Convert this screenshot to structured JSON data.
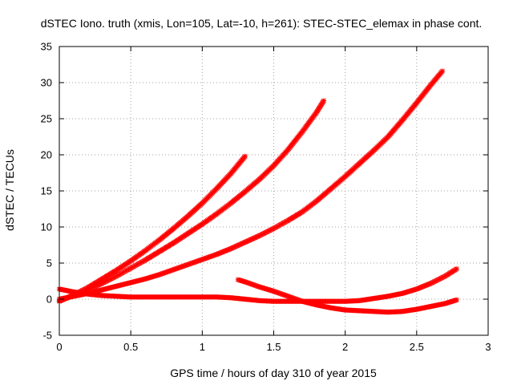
{
  "chart_data": {
    "type": "scatter",
    "title": "dSTEC Iono. truth (xmis, Lon=105, Lat=-10, h=261): STEC-STEC_elemax in phase cont.",
    "xlabel": "GPS time / hours of day 310 of year 2015",
    "ylabel": "dSTEC  / TECUs",
    "xlim": [
      0,
      3
    ],
    "ylim": [
      -5,
      35
    ],
    "xticks": [
      0,
      0.5,
      1,
      1.5,
      2,
      2.5,
      3
    ],
    "yticks": [
      -5,
      0,
      5,
      10,
      15,
      20,
      25,
      30,
      35
    ],
    "xtick_labels": [
      "0",
      "0.5",
      "1",
      "1.5",
      "2",
      "2.5",
      "3"
    ],
    "ytick_labels": [
      "-5",
      "0",
      "5",
      "10",
      "15",
      "20",
      "25",
      "30",
      "35"
    ],
    "grid": true,
    "marker": "plus-cross",
    "color": "#ff0000",
    "series": [
      {
        "x": [
          0.0,
          0.1,
          0.2,
          0.3,
          0.4,
          0.5,
          0.6,
          0.7,
          0.8,
          0.9,
          1.0,
          1.1,
          1.2,
          1.3
        ],
        "y": [
          -0.3,
          0.6,
          1.6,
          2.8,
          4.0,
          5.3,
          6.7,
          8.2,
          9.8,
          11.5,
          13.3,
          15.3,
          17.4,
          19.8
        ]
      },
      {
        "x": [
          0.0,
          0.1,
          0.2,
          0.3,
          0.4,
          0.5,
          0.6,
          0.7,
          0.8,
          0.9,
          1.0,
          1.1,
          1.2,
          1.3,
          1.4,
          1.5,
          1.6,
          1.7,
          1.8,
          1.85
        ],
        "y": [
          -0.2,
          0.5,
          1.3,
          2.2,
          3.2,
          4.3,
          5.4,
          6.6,
          7.8,
          9.1,
          10.4,
          11.8,
          13.3,
          14.9,
          16.6,
          18.5,
          20.7,
          23.2,
          25.9,
          27.5
        ]
      },
      {
        "x": [
          0.0,
          0.1,
          0.2,
          0.3,
          0.4,
          0.5,
          0.6,
          0.7,
          0.8,
          0.9,
          1.0,
          1.1,
          1.2,
          1.3,
          1.4,
          1.5,
          1.6,
          1.7,
          1.8,
          1.9,
          2.0,
          2.1,
          2.2,
          2.3,
          2.4,
          2.5,
          2.6,
          2.68
        ],
        "y": [
          0.0,
          0.4,
          0.8,
          1.3,
          1.8,
          2.3,
          2.8,
          3.4,
          4.1,
          4.8,
          5.5,
          6.2,
          7.0,
          7.9,
          8.8,
          9.8,
          10.9,
          12.1,
          13.6,
          15.3,
          17.0,
          18.8,
          20.6,
          22.5,
          24.8,
          27.2,
          29.7,
          31.6
        ]
      },
      {
        "x": [
          0.0,
          0.1,
          0.2,
          0.3,
          0.4,
          0.5,
          0.6,
          0.7,
          0.8,
          0.9,
          1.0,
          1.1,
          1.2,
          1.3,
          1.4,
          1.5,
          1.6,
          1.7,
          1.8,
          1.9,
          2.0,
          2.1,
          2.2,
          2.3,
          2.4,
          2.5,
          2.6,
          2.7,
          2.78
        ],
        "y": [
          1.4,
          1.0,
          0.7,
          0.5,
          0.4,
          0.3,
          0.3,
          0.3,
          0.3,
          0.3,
          0.3,
          0.3,
          0.2,
          0.0,
          -0.2,
          -0.3,
          -0.3,
          -0.3,
          -0.3,
          -0.3,
          -0.3,
          -0.2,
          0.1,
          0.4,
          0.8,
          1.4,
          2.2,
          3.2,
          4.2
        ]
      },
      {
        "x": [
          1.25,
          1.3,
          1.4,
          1.5,
          1.6,
          1.7,
          1.8,
          1.9,
          2.0,
          2.1,
          2.2,
          2.3,
          2.4,
          2.5,
          2.6,
          2.7,
          2.78
        ],
        "y": [
          2.7,
          2.4,
          1.7,
          1.1,
          0.4,
          -0.3,
          -0.8,
          -1.2,
          -1.5,
          -1.6,
          -1.7,
          -1.8,
          -1.7,
          -1.4,
          -1.0,
          -0.6,
          -0.1
        ]
      }
    ]
  }
}
